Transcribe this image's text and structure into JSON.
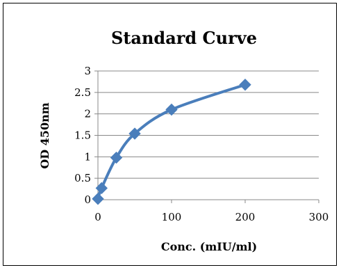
{
  "chart_data": {
    "type": "line",
    "title": "Standard Curve",
    "xlabel": "Conc. (mIU/ml)",
    "ylabel": "OD 450nm",
    "xlim": [
      0,
      300
    ],
    "ylim": [
      0,
      3
    ],
    "x_ticks": [
      "0",
      "100",
      "200",
      "300"
    ],
    "y_ticks": [
      "0",
      "0.5",
      "1",
      "1.5",
      "2",
      "2.5",
      "3"
    ],
    "grid": "horizontal",
    "legend": "none",
    "series": [
      {
        "x": [
          0,
          5,
          25,
          50,
          100,
          200
        ],
        "values": [
          0.02,
          0.27,
          0.98,
          1.54,
          2.1,
          2.68
        ],
        "color": "#4a7ebb",
        "marker": "diamond",
        "smooth": true
      }
    ]
  }
}
